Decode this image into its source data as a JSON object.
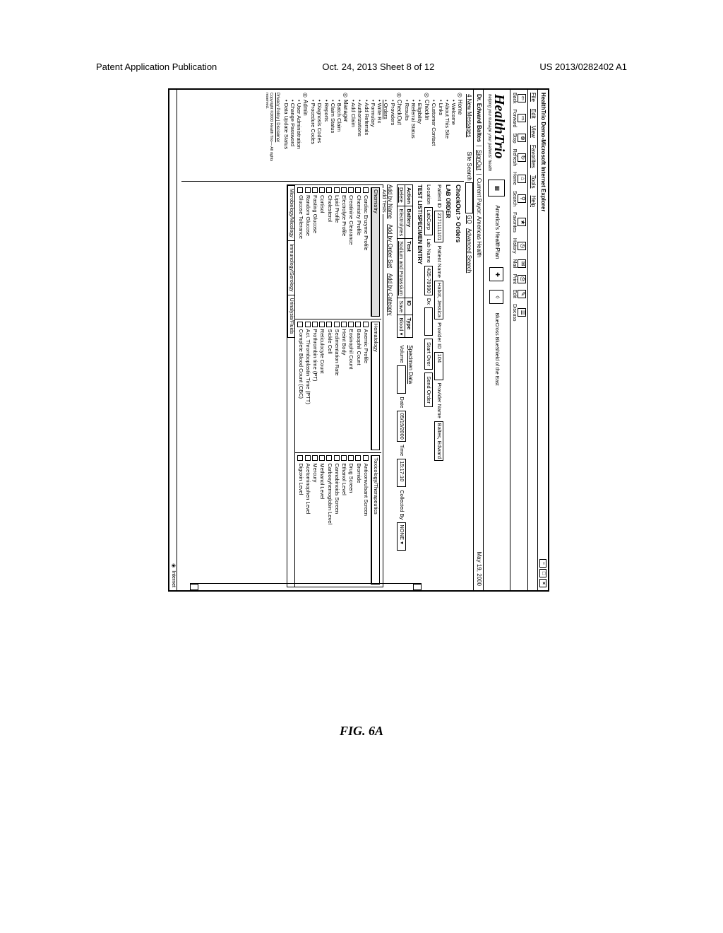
{
  "pub_header": {
    "left": "Patent Application Publication",
    "center": "Oct. 24, 2013  Sheet 8 of 12",
    "right": "US 2013/0282402 A1"
  },
  "window": {
    "title": "HealthTrio Demo-Microsoft Internet Explorer"
  },
  "menubar": [
    "File",
    "Edit",
    "View",
    "Favorites",
    "Tools",
    "Help"
  ],
  "toolbar": [
    {
      "icon": "⇦",
      "label": "Back"
    },
    {
      "icon": "⇨",
      "label": "Forward"
    },
    {
      "icon": "⊗",
      "label": "Stop"
    },
    {
      "icon": "↻",
      "label": "Refresh"
    },
    {
      "icon": "⌂",
      "label": "Home"
    },
    {
      "icon": "⚲",
      "label": "Search"
    },
    {
      "icon": "★",
      "label": "Favorites"
    },
    {
      "icon": "◷",
      "label": "History"
    },
    {
      "icon": "✉",
      "label": "Mail"
    },
    {
      "icon": "⎙",
      "label": "Print"
    },
    {
      "icon": "✎",
      "label": "Edit"
    },
    {
      "icon": "☰",
      "label": "Discuss"
    }
  ],
  "brand": {
    "logo": "HealthTrio",
    "tagline": "helping you manage your patients' health",
    "plan": "America's HealthPlan",
    "insurer": "BlueCross BlueShield of the East"
  },
  "user_row": {
    "name": "Dr. Edward Baltes",
    "signout": "SignOut",
    "payor_label": "Current Payor:",
    "payor_value": "Americas Health",
    "date": "May 19, 2000"
  },
  "msg_row": {
    "messages": "4 New Messages",
    "search_label": "Site Search",
    "go": "GO",
    "advanced": "Advanced Search"
  },
  "sidebar": {
    "groups": [
      {
        "head": "Home",
        "items": [
          {
            "label": "Welcome"
          },
          {
            "label": "About This Site"
          },
          {
            "label": "Links"
          },
          {
            "label": "Customer Contact"
          }
        ]
      },
      {
        "head": "CheckIn",
        "items": [
          {
            "label": "Eligibility"
          },
          {
            "label": "Referral Status"
          },
          {
            "label": "Results"
          }
        ]
      },
      {
        "head": "CheckOut",
        "items": [
          {
            "label": "Providers"
          },
          {
            "label": "Orders",
            "u": true
          },
          {
            "label": "Write Rx"
          },
          {
            "label": "Formulary"
          },
          {
            "label": "Add Referrals"
          },
          {
            "label": "Authorizations"
          },
          {
            "label": "Add Claim"
          }
        ]
      },
      {
        "head": "Manager",
        "items": [
          {
            "label": "Batch Claim"
          },
          {
            "label": "Claim Status"
          },
          {
            "label": "Reports"
          },
          {
            "label": "Diagnosis Codes"
          },
          {
            "label": "Procedure Codes"
          }
        ]
      },
      {
        "head": "Admin",
        "items": [
          {
            "label": "User Administration"
          },
          {
            "label": "Change Password"
          },
          {
            "label": "Data Update Status"
          }
        ]
      }
    ],
    "disclaimer": "Privacy Policy | Disclaimer",
    "copyright": "Copyright ©2000 Health Trio— All rights reserved."
  },
  "main": {
    "breadcrumb": "CheckOut > Orders",
    "lab_order": "LAB ORDER",
    "patient": {
      "id_label": "Patient ID",
      "id_value": "2171111101",
      "name_label": "Patient Name",
      "name_value": "Habot, Jessica",
      "prov_id_label": "Provider ID",
      "prov_id_value": "104",
      "prov_name_label": "Provider Name",
      "prov_name_value": "Baltes, Edward"
    },
    "lab": {
      "loc_label": "Location",
      "loc_value": "LabCorp",
      "lab_label": "Lab Name",
      "lab_value": "435-78990",
      "dx_label": "Dx",
      "start_over": "Start Over",
      "send_order": "Send Order"
    },
    "test_section": "TEST LIST/SPECIMEN ENTRY",
    "test_table": {
      "headers": [
        "Action",
        "Battery",
        "Test",
        "ID",
        "Type"
      ],
      "row": {
        "delete": "Delete",
        "battery": "Electrolytes",
        "test": "Sodium and Potassium",
        "save": "Save",
        "type": "Blood"
      }
    },
    "specimen": {
      "head": "Specimen Data",
      "vol_label": "Volume",
      "date_label": "Date",
      "date_value": "05/19/2000",
      "time_label": "Time",
      "time_value": "15:17:10",
      "coll_label": "Collected By",
      "coll_value": "NONE"
    },
    "add_links": {
      "by_name": "Add by Name",
      "by_set": "Add by Order Set",
      "by_cat": "Add by Category"
    },
    "add_tests_label": "Add Tests",
    "categories": {
      "chemistry": {
        "head": "Chemistry",
        "items": [
          "Cardiac Enzyme Profile",
          "Chemistry Profile",
          "Creatinine Clearance",
          "Electrolyte Profile",
          "Lipid Profile",
          "Cholesterol",
          "Cortisol",
          "Fasting Glucose",
          "Random Glucose",
          "Glucose Tolerance"
        ]
      },
      "hematology": {
        "head": "Hematology",
        "items": [
          "Anemic Profile",
          "Basophil Count",
          "Eosinophil Count",
          "Heint Body",
          "Sedimentation Rate",
          "Sickle Cell",
          "Reticulocyte Count",
          "Prothrombin time (PT)",
          "Act. Thromboplastin Time (PTT)",
          "Complete Blood Count (CBC)"
        ]
      },
      "toxicology": {
        "head": "Toxicology/Therapeutics",
        "items": [
          "Anticonvulsant Screen",
          "Bromide",
          "Drug Screen",
          "Ethanol Level",
          "Cannabinoids Screen",
          "Carboxyhemoglobin Level",
          "Methanol Level",
          "Mercury",
          "Acetominophen Level",
          "Digoxin Level"
        ]
      }
    },
    "bottom_tabs": [
      "Microbiology/Micology",
      "Immunology/Serology",
      "Urinalysis/Fluids"
    ],
    "status_zone": "Internet"
  },
  "figure_label": "FIG. 6A"
}
